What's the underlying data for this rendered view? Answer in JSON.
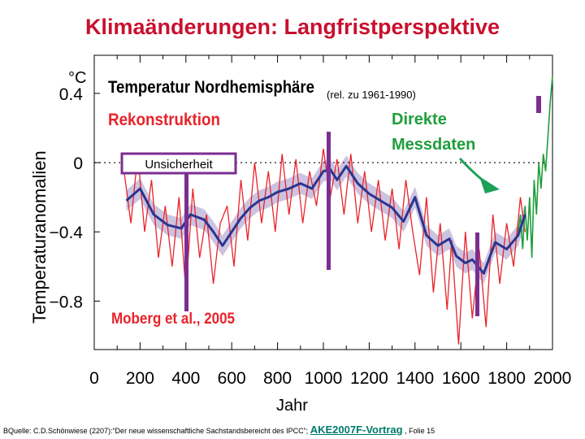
{
  "slide": {
    "title": "Klimaänderungen: Langfristperspektive"
  },
  "chart_data": {
    "type": "line",
    "title": "Temperatur Nordhemisphäre",
    "subtitle": "(rel. zu 1961-1990)",
    "ylabel": "Temperaturanomalien",
    "yunit": "°C",
    "xlabel": "Jahr",
    "xlim": [
      0,
      2000
    ],
    "ylim": [
      -1.08,
      0.62
    ],
    "xticks": [
      0,
      200,
      400,
      600,
      800,
      1000,
      1200,
      1400,
      1600,
      1800,
      2000
    ],
    "yticks": [
      0.4,
      0,
      -0.4,
      -0.8
    ],
    "ytick_labels": [
      "0.4",
      "0",
      "−0.4",
      "−0.8"
    ],
    "annotations": {
      "reconstruction": "Rekonstruktion",
      "measured_line1": "Direkte",
      "measured_line2": "Messdaten",
      "uncertainty": "Unsicherheit",
      "source": "Moberg et al., 2005"
    },
    "colors": {
      "reconstruction": "#e8232a",
      "smoothed": "#2b3590",
      "uncertainty_band": "#c3b8da",
      "measured": "#1f9e3c",
      "marker": "#7b2e91",
      "arrow": "#1fa05a"
    },
    "series": [
      {
        "name": "Rekonstruktion (geglättet)",
        "x": [
          140,
          200,
          260,
          320,
          380,
          420,
          480,
          520,
          560,
          600,
          640,
          680,
          720,
          760,
          800,
          850,
          900,
          950,
          1000,
          1030,
          1060,
          1100,
          1150,
          1200,
          1250,
          1300,
          1350,
          1400,
          1450,
          1500,
          1550,
          1580,
          1620,
          1650,
          1700,
          1750,
          1800,
          1850,
          1880
        ],
        "values": [
          -0.22,
          -0.15,
          -0.3,
          -0.36,
          -0.38,
          -0.3,
          -0.33,
          -0.4,
          -0.48,
          -0.4,
          -0.32,
          -0.26,
          -0.22,
          -0.2,
          -0.17,
          -0.15,
          -0.12,
          -0.15,
          -0.05,
          -0.04,
          -0.1,
          -0.02,
          -0.12,
          -0.18,
          -0.22,
          -0.26,
          -0.34,
          -0.2,
          -0.42,
          -0.48,
          -0.44,
          -0.54,
          -0.58,
          -0.56,
          -0.64,
          -0.46,
          -0.5,
          -0.42,
          -0.3
        ]
      },
      {
        "name": "Rekonstruktion (jährlich)",
        "x": [
          130,
          160,
          190,
          220,
          250,
          280,
          310,
          340,
          370,
          400,
          430,
          460,
          490,
          520,
          550,
          580,
          610,
          640,
          670,
          700,
          730,
          760,
          790,
          820,
          850,
          880,
          910,
          940,
          970,
          1000,
          1030,
          1060,
          1090,
          1120,
          1150,
          1180,
          1210,
          1240,
          1270,
          1300,
          1330,
          1360,
          1390,
          1420,
          1450,
          1480,
          1510,
          1540,
          1560,
          1590,
          1620,
          1650,
          1680,
          1710,
          1740,
          1770,
          1800,
          1830,
          1860,
          1880
        ],
        "values": [
          -0.05,
          -0.35,
          0.05,
          -0.4,
          -0.1,
          -0.55,
          -0.25,
          -0.6,
          -0.2,
          -0.75,
          -0.15,
          -0.55,
          -0.3,
          -0.7,
          -0.35,
          -0.25,
          -0.6,
          -0.1,
          -0.45,
          0.0,
          -0.35,
          -0.05,
          -0.4,
          0.05,
          -0.3,
          0.02,
          -0.35,
          -0.05,
          -0.25,
          0.08,
          -0.2,
          0.02,
          -0.3,
          0.05,
          -0.35,
          -0.05,
          -0.4,
          -0.1,
          -0.45,
          -0.15,
          -0.5,
          -0.1,
          -0.4,
          -0.65,
          -0.2,
          -0.75,
          -0.35,
          -0.85,
          -0.45,
          -1.05,
          -0.4,
          -0.9,
          -0.5,
          -0.95,
          -0.3,
          -0.7,
          -0.35,
          -0.6,
          -0.2,
          -0.4
        ]
      },
      {
        "name": "Direkte Messdaten",
        "x": [
          1850,
          1860,
          1870,
          1880,
          1890,
          1900,
          1910,
          1920,
          1930,
          1940,
          1950,
          1960,
          1970,
          1980,
          1990,
          2000
        ],
        "values": [
          -0.4,
          -0.3,
          -0.5,
          -0.25,
          -0.45,
          -0.2,
          -0.55,
          -0.1,
          -0.3,
          0.0,
          -0.15,
          0.05,
          -0.05,
          0.15,
          0.35,
          0.5
        ]
      }
    ]
  },
  "footer": {
    "source_text": "BQuelle: C.D.Schönwiese (2207):“Der neue wissenschaftliche Sachstandsbereicht des IPCC”;",
    "link_text": "AKE2007F-Vortrag",
    "slide_number": ", Folie 15"
  }
}
